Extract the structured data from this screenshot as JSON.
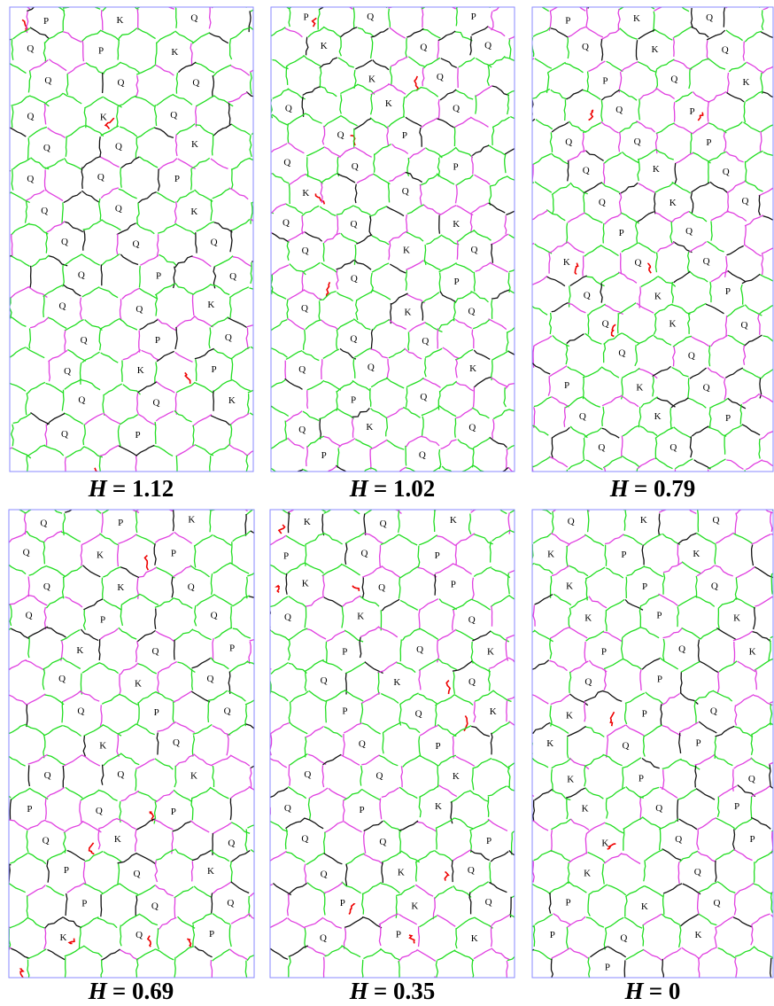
{
  "panels": [
    {
      "symbol": "H",
      "relation": "= 1.12",
      "cells": [
        "P",
        "K",
        "Q",
        "Q",
        "P",
        "K",
        "Q",
        "Q",
        "Q",
        "Q",
        "K",
        "Q",
        "Q",
        "Q",
        "K",
        "Q",
        "Q",
        "P",
        "Q",
        "Q",
        "K",
        "Q",
        "Q",
        "Q",
        "Q",
        "P",
        "Q",
        "Q",
        "Q",
        "K",
        "Q",
        "P",
        "Q",
        "Q",
        "K",
        "P",
        "Q",
        "Q",
        "K",
        "Q",
        "P"
      ]
    },
    {
      "symbol": "H",
      "relation": "= 1.02",
      "cells": [
        "P",
        "Q",
        "P",
        "K",
        "Q",
        "Q",
        "K",
        "Q",
        "Q",
        "K",
        "Q",
        "Q",
        "P",
        "Q",
        "Q",
        "P",
        "K",
        "Q",
        "Q",
        "Q",
        "K",
        "Q",
        "K",
        "Q",
        "Q",
        "P",
        "Q",
        "K",
        "Q",
        "Q",
        "Q",
        "Q",
        "Q",
        "K",
        "P",
        "Q",
        "Q",
        "K",
        "Q",
        "P",
        "Q"
      ]
    },
    {
      "symbol": "H",
      "relation": "= 0.79",
      "cells": [
        "P",
        "K",
        "Q",
        "Q",
        "K",
        "Q",
        "P",
        "Q",
        "K",
        "Q",
        "P",
        "Q",
        "Q",
        "P",
        "Q",
        "K",
        "Q",
        "Q",
        "K",
        "Q",
        "P",
        "Q",
        "K",
        "Q",
        "Q",
        "Q",
        "K",
        "P",
        "Q",
        "K",
        "Q",
        "Q",
        "Q",
        "P",
        "K",
        "Q",
        "Q",
        "K",
        "P",
        "Q",
        "Q"
      ]
    },
    {
      "symbol": "H",
      "relation": "= 0.69",
      "cells": [
        "Q",
        "P",
        "K",
        "Q",
        "K",
        "P",
        "Q",
        "K",
        "Q",
        "Q",
        "P",
        "Q",
        "K",
        "Q",
        "P",
        "Q",
        "K",
        "Q",
        "Q",
        "P",
        "Q",
        "K",
        "Q",
        "Q",
        "Q",
        "K",
        "P",
        "Q",
        "P",
        "Q",
        "K",
        "Q",
        "P",
        "Q",
        "K",
        "P",
        "Q",
        "Q",
        "K",
        "Q",
        "P"
      ]
    },
    {
      "symbol": "H",
      "relation": "= 0.35",
      "cells": [
        "K",
        "Q",
        "K",
        "P",
        "Q",
        "P",
        "K",
        "Q",
        "P",
        "Q",
        "K",
        "Q",
        "P",
        "Q",
        "K",
        "Q",
        "K",
        "Q",
        "P",
        "Q",
        "K",
        "Q",
        "P",
        "Q",
        "Q",
        "K",
        "Q",
        "P",
        "K",
        "Q",
        "Q",
        "P",
        "Q",
        "K",
        "Q",
        "P",
        "K",
        "Q",
        "Q",
        "P",
        "K"
      ]
    },
    {
      "symbol": "H",
      "relation": "= 0",
      "cells": [
        "Q",
        "K",
        "Q",
        "K",
        "P",
        "K",
        "K",
        "P",
        "Q",
        "K",
        "P",
        "K",
        "P",
        "Q",
        "K",
        "Q",
        "P",
        "K",
        "P",
        "Q",
        "K",
        "Q",
        "P",
        "K",
        "P",
        "Q",
        "K",
        "Q",
        "P",
        "K",
        "Q",
        "P",
        "K",
        "Q",
        "P",
        "K",
        "Q",
        "P",
        "Q",
        "K",
        "P"
      ]
    }
  ]
}
